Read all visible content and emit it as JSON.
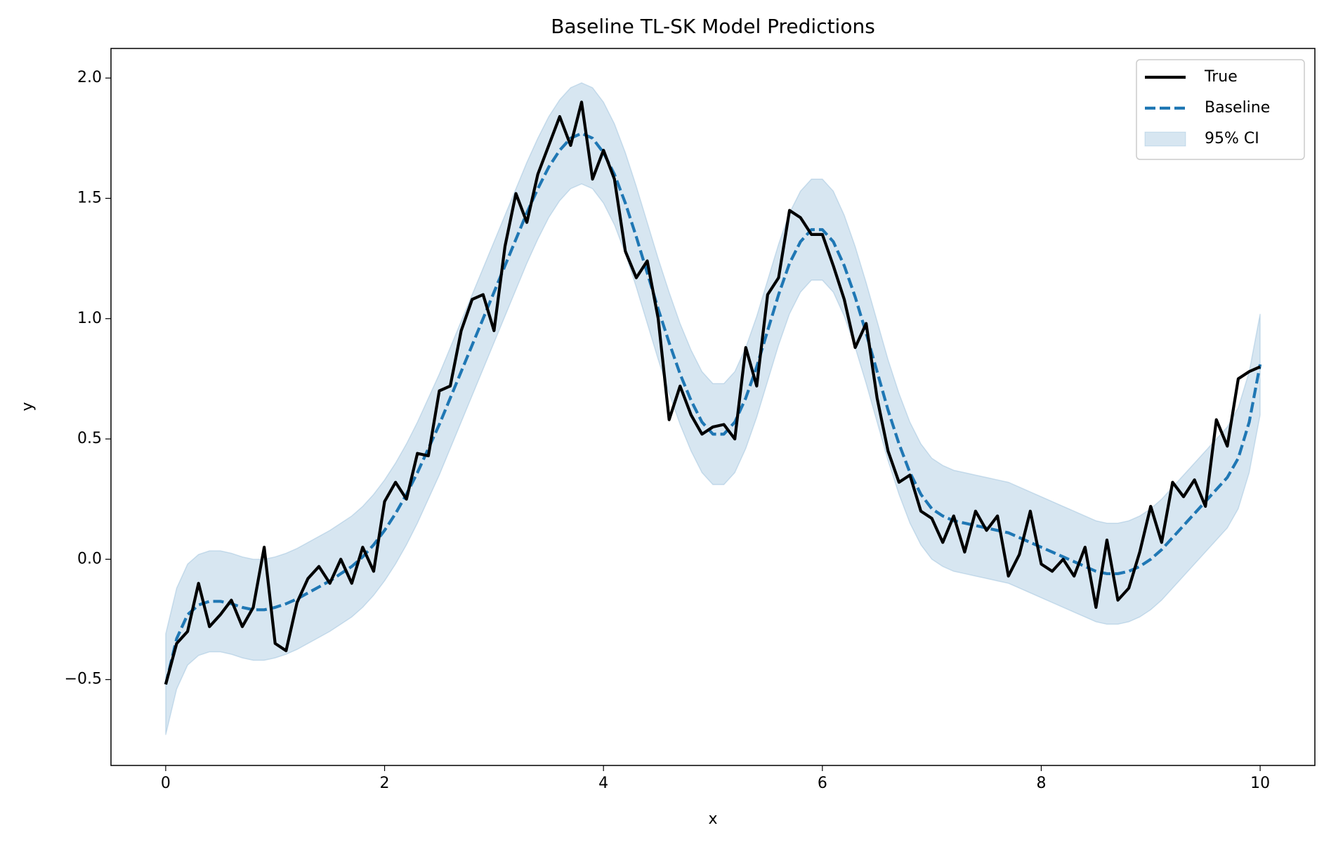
{
  "chart_data": {
    "type": "line",
    "title": "Baseline TL-SK Model Predictions",
    "x_label": "x",
    "y_label": "y",
    "xlim": [
      -0.5,
      10.5
    ],
    "ylim": [
      -0.857,
      2.123
    ],
    "xticks": [
      0,
      2,
      4,
      6,
      8,
      10
    ],
    "yticks": [
      {
        "value": -0.5,
        "label": "−0.5"
      },
      {
        "value": 0,
        "label": "0.0"
      },
      0.5,
      {
        "value": 1,
        "label": "1.0"
      },
      1.5,
      {
        "value": 2,
        "label": "2.0"
      }
    ],
    "legend": "upper right",
    "x": [
      0,
      0.1,
      0.2,
      0.3,
      0.4,
      0.5,
      0.6,
      0.7,
      0.8,
      0.9,
      1,
      1.1,
      1.2,
      1.3,
      1.4,
      1.5,
      1.6,
      1.7,
      1.8,
      1.9,
      2,
      2.1,
      2.2,
      2.3,
      2.4,
      2.5,
      2.6,
      2.7,
      2.8,
      2.9,
      3,
      3.1,
      3.2,
      3.3,
      3.4,
      3.5,
      3.6,
      3.7,
      3.8,
      3.9,
      4,
      4.1,
      4.2,
      4.3,
      4.4,
      4.5,
      4.6,
      4.7,
      4.8,
      4.9,
      5,
      5.1,
      5.2,
      5.3,
      5.4,
      5.5,
      5.6,
      5.7,
      5.8,
      5.9,
      6,
      6.1,
      6.2,
      6.3,
      6.4,
      6.5,
      6.6,
      6.7,
      6.8,
      6.9,
      7,
      7.1,
      7.2,
      7.3,
      7.4,
      7.5,
      7.6,
      7.7,
      7.8,
      7.9,
      8,
      8.1,
      8.2,
      8.3,
      8.4,
      8.5,
      8.6,
      8.7,
      8.8,
      8.9,
      9,
      9.1,
      9.2,
      9.3,
      9.4,
      9.5,
      9.6,
      9.7,
      9.8,
      9.9,
      10
    ],
    "series": [
      {
        "name": "True",
        "color": "#000000",
        "style": "solid",
        "values": [
          -0.52,
          -0.35,
          -0.3,
          -0.1,
          -0.28,
          -0.23,
          -0.17,
          -0.28,
          -0.2,
          0.05,
          -0.35,
          -0.38,
          -0.18,
          -0.08,
          -0.03,
          -0.1,
          0,
          -0.1,
          0.05,
          -0.05,
          0.24,
          0.32,
          0.25,
          0.44,
          0.43,
          0.7,
          0.72,
          0.95,
          1.08,
          1.1,
          0.95,
          1.3,
          1.52,
          1.4,
          1.6,
          1.72,
          1.84,
          1.72,
          1.9,
          1.58,
          1.7,
          1.58,
          1.28,
          1.17,
          1.24,
          1,
          0.58,
          0.72,
          0.6,
          0.52,
          0.55,
          0.56,
          0.5,
          0.88,
          0.72,
          1.1,
          1.17,
          1.45,
          1.42,
          1.35,
          1.35,
          1.22,
          1.08,
          0.88,
          0.98,
          0.67,
          0.45,
          0.32,
          0.35,
          0.2,
          0.17,
          0.07,
          0.18,
          0.03,
          0.2,
          0.12,
          0.18,
          -0.07,
          0.02,
          0.2,
          -0.02,
          -0.05,
          0,
          -0.07,
          0.05,
          -0.2,
          0.08,
          -0.17,
          -0.12,
          0.03,
          0.22,
          0.07,
          0.32,
          0.26,
          0.33,
          0.22,
          0.58,
          0.47,
          0.75,
          0.78,
          0.8
        ]
      },
      {
        "name": "Baseline",
        "color": "#1f77b4",
        "style": "dashed",
        "values": [
          -0.52,
          -0.33,
          -0.23,
          -0.19,
          -0.175,
          -0.175,
          -0.185,
          -0.2,
          -0.21,
          -0.21,
          -0.2,
          -0.185,
          -0.165,
          -0.14,
          -0.115,
          -0.09,
          -0.06,
          -0.03,
          0.01,
          0.06,
          0.12,
          0.19,
          0.27,
          0.36,
          0.46,
          0.56,
          0.67,
          0.78,
          0.89,
          1,
          1.11,
          1.22,
          1.33,
          1.44,
          1.54,
          1.63,
          1.7,
          1.75,
          1.77,
          1.75,
          1.69,
          1.6,
          1.48,
          1.34,
          1.19,
          1.04,
          0.9,
          0.77,
          0.66,
          0.57,
          0.52,
          0.52,
          0.57,
          0.67,
          0.8,
          0.95,
          1.1,
          1.23,
          1.32,
          1.37,
          1.37,
          1.32,
          1.22,
          1.09,
          0.94,
          0.78,
          0.62,
          0.48,
          0.36,
          0.27,
          0.21,
          0.18,
          0.16,
          0.15,
          0.14,
          0.13,
          0.12,
          0.11,
          0.09,
          0.07,
          0.05,
          0.03,
          0.01,
          -0.01,
          -0.03,
          -0.05,
          -0.06,
          -0.06,
          -0.05,
          -0.03,
          0,
          0.04,
          0.09,
          0.14,
          0.19,
          0.24,
          0.29,
          0.34,
          0.42,
          0.57,
          0.81
        ]
      },
      {
        "name": "95% CI",
        "color": "#1f77b4",
        "style": "band",
        "opacity": 0.18,
        "lower": [
          -0.73,
          -0.54,
          -0.44,
          -0.4,
          -0.385,
          -0.385,
          -0.395,
          -0.41,
          -0.42,
          -0.42,
          -0.41,
          -0.395,
          -0.375,
          -0.35,
          -0.325,
          -0.3,
          -0.27,
          -0.24,
          -0.2,
          -0.15,
          -0.09,
          -0.02,
          0.06,
          0.15,
          0.25,
          0.35,
          0.46,
          0.57,
          0.68,
          0.79,
          0.9,
          1.01,
          1.12,
          1.23,
          1.33,
          1.42,
          1.49,
          1.54,
          1.56,
          1.54,
          1.48,
          1.39,
          1.27,
          1.13,
          0.98,
          0.83,
          0.69,
          0.56,
          0.45,
          0.36,
          0.31,
          0.31,
          0.36,
          0.46,
          0.59,
          0.74,
          0.89,
          1.02,
          1.11,
          1.16,
          1.16,
          1.11,
          1.01,
          0.88,
          0.73,
          0.57,
          0.41,
          0.27,
          0.15,
          0.06,
          0,
          -0.03,
          -0.05,
          -0.06,
          -0.07,
          -0.08,
          -0.09,
          -0.1,
          -0.12,
          -0.14,
          -0.16,
          -0.18,
          -0.2,
          -0.22,
          -0.24,
          -0.26,
          -0.27,
          -0.27,
          -0.26,
          -0.24,
          -0.21,
          -0.17,
          -0.12,
          -0.07,
          -0.02,
          0.03,
          0.08,
          0.13,
          0.21,
          0.36,
          0.6
        ],
        "upper": [
          -0.31,
          -0.12,
          -0.02,
          0.02,
          0.035,
          0.035,
          0.025,
          0.01,
          0,
          0,
          0.01,
          0.025,
          0.045,
          0.07,
          0.095,
          0.12,
          0.15,
          0.18,
          0.22,
          0.27,
          0.33,
          0.4,
          0.48,
          0.57,
          0.67,
          0.77,
          0.88,
          0.99,
          1.1,
          1.21,
          1.32,
          1.43,
          1.54,
          1.65,
          1.75,
          1.84,
          1.91,
          1.96,
          1.98,
          1.96,
          1.9,
          1.81,
          1.69,
          1.55,
          1.4,
          1.25,
          1.11,
          0.98,
          0.87,
          0.78,
          0.73,
          0.73,
          0.78,
          0.88,
          1.01,
          1.16,
          1.31,
          1.44,
          1.53,
          1.58,
          1.58,
          1.53,
          1.43,
          1.3,
          1.15,
          0.99,
          0.83,
          0.69,
          0.57,
          0.48,
          0.42,
          0.39,
          0.37,
          0.36,
          0.35,
          0.34,
          0.33,
          0.32,
          0.3,
          0.28,
          0.26,
          0.24,
          0.22,
          0.2,
          0.18,
          0.16,
          0.15,
          0.15,
          0.16,
          0.18,
          0.21,
          0.25,
          0.3,
          0.35,
          0.4,
          0.45,
          0.5,
          0.55,
          0.63,
          0.78,
          1.02
        ]
      }
    ]
  }
}
